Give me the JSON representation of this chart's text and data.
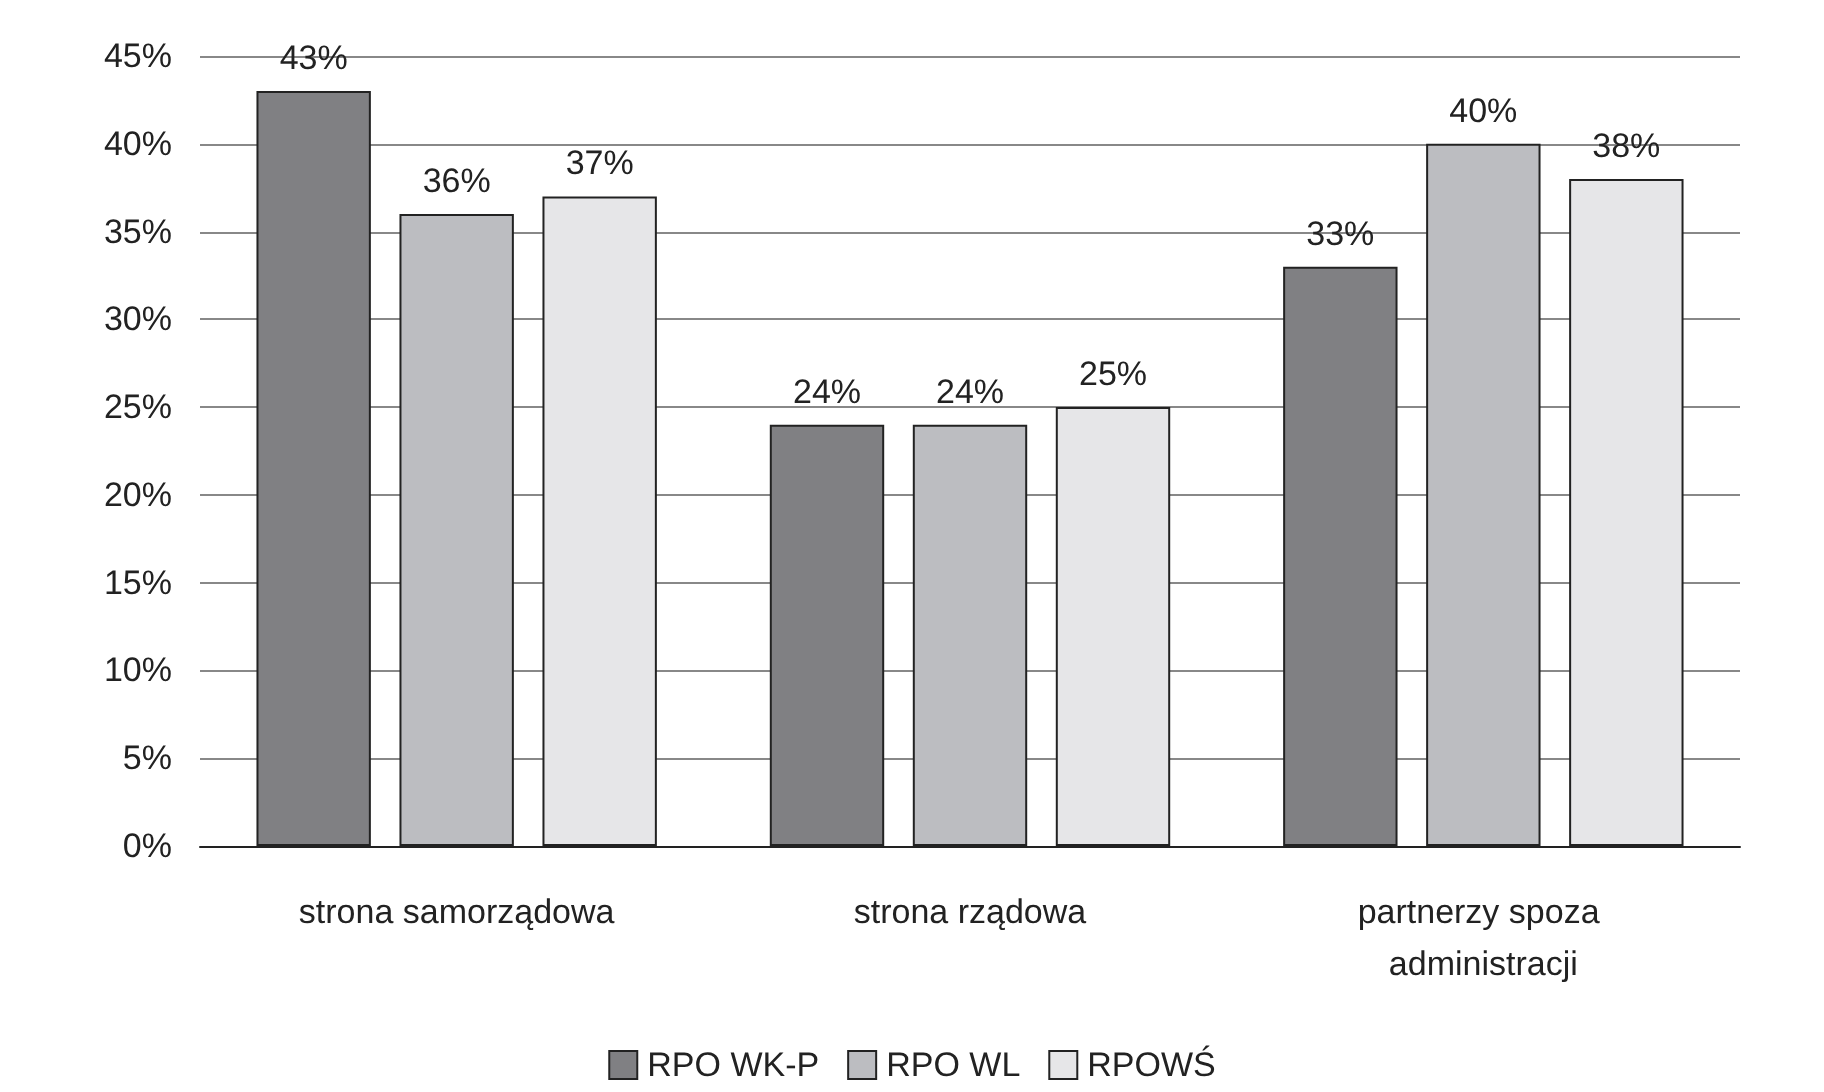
{
  "chart_data": {
    "type": "bar",
    "categories": [
      "strona samorządowa",
      "strona rządowa",
      "partnerzy spoza administracji"
    ],
    "series": [
      {
        "name": "RPO WK-P",
        "color": "#808083",
        "values": [
          43,
          24,
          33
        ],
        "value_labels": [
          "43%",
          "24%",
          "33%"
        ]
      },
      {
        "name": "RPO WL",
        "color": "#bcbdc1",
        "values": [
          36,
          24,
          40
        ],
        "value_labels": [
          "36%",
          "24%",
          "40%"
        ]
      },
      {
        "name": "RPOWŚ",
        "color": "#e6e6e8",
        "values": [
          37,
          25,
          38
        ],
        "value_labels": [
          "37%",
          "25%",
          "38%"
        ]
      }
    ],
    "ylim": [
      0,
      45
    ],
    "yticks": [
      {
        "value": 0,
        "label": "0%"
      },
      {
        "value": 5,
        "label": "5%"
      },
      {
        "value": 10,
        "label": "10%"
      },
      {
        "value": 15,
        "label": "15%"
      },
      {
        "value": 20,
        "label": "20%"
      },
      {
        "value": 25,
        "label": "25%"
      },
      {
        "value": 30,
        "label": "30%"
      },
      {
        "value": 35,
        "label": "35%"
      },
      {
        "value": 40,
        "label": "40%"
      },
      {
        "value": 45,
        "label": "45%"
      }
    ],
    "grid": "y",
    "legend": "bottom"
  }
}
